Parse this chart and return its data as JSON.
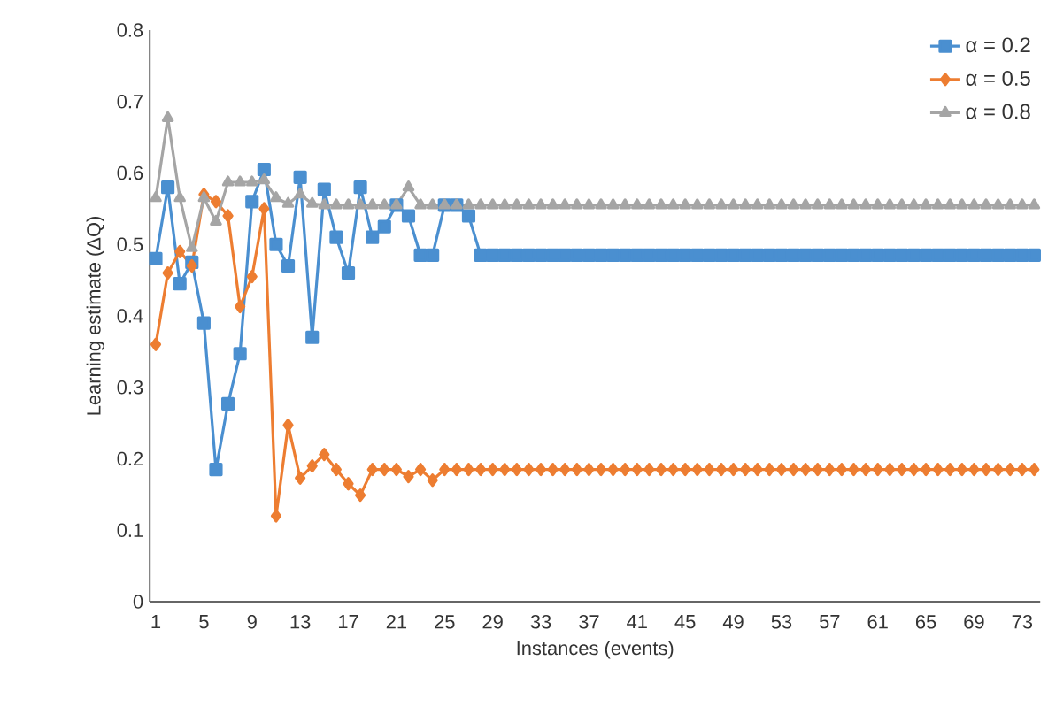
{
  "chart_data": {
    "type": "line",
    "xlabel": "Instances (events)",
    "ylabel": "Learning estimate (ΔQ)",
    "categories": [
      "1",
      null,
      null,
      null,
      "5",
      null,
      null,
      null,
      "9",
      null,
      null,
      null,
      "13",
      null,
      null,
      null,
      "17",
      null,
      null,
      null,
      "21",
      null,
      null,
      null,
      "25",
      null,
      null,
      null,
      "29",
      null,
      null,
      null,
      "33",
      null,
      null,
      null,
      "37",
      null,
      null,
      null,
      "41",
      null,
      null,
      null,
      "45",
      null,
      null,
      null,
      "49",
      null,
      null,
      null,
      "53",
      null,
      null,
      null,
      "57",
      null,
      null,
      null,
      "61",
      null,
      null,
      null,
      "65",
      null,
      null,
      null,
      "69",
      null,
      null,
      null,
      "73",
      null
    ],
    "ylim": [
      0,
      0.8
    ],
    "yticks": [
      0,
      0.1,
      0.2,
      0.3,
      0.4,
      0.5,
      0.6,
      0.7,
      0.8
    ],
    "grid": false,
    "legend": "top right",
    "series": [
      {
        "name": "α = 0.2",
        "color": "#4a8fd0",
        "marker": "square",
        "values": [
          0.48,
          0.58,
          0.445,
          0.475,
          0.39,
          0.185,
          0.277,
          0.347,
          0.56,
          0.605,
          0.5,
          0.47,
          0.594,
          0.37,
          0.577,
          0.51,
          0.46,
          0.58,
          0.51,
          0.525,
          0.555,
          0.54,
          0.485,
          0.485,
          0.555,
          0.555,
          0.54,
          0.485,
          0.485,
          0.485,
          0.485,
          0.485,
          0.485,
          0.485,
          0.485,
          0.485,
          0.485,
          0.485,
          0.485,
          0.485,
          0.485,
          0.485,
          0.485,
          0.485,
          0.485,
          0.485,
          0.485,
          0.485,
          0.485,
          0.485,
          0.485,
          0.485,
          0.485,
          0.485,
          0.485,
          0.485,
          0.485,
          0.485,
          0.485,
          0.485,
          0.485,
          0.485,
          0.485,
          0.485,
          0.485,
          0.485,
          0.485,
          0.485,
          0.485,
          0.485,
          0.485,
          0.485,
          0.485,
          0.485
        ]
      },
      {
        "name": "α = 0.5",
        "color": "#ed7d31",
        "marker": "diamond",
        "values": [
          0.36,
          0.46,
          0.49,
          0.47,
          0.57,
          0.56,
          0.54,
          0.413,
          0.455,
          0.55,
          0.12,
          0.247,
          0.173,
          0.19,
          0.206,
          0.185,
          0.165,
          0.149,
          0.185,
          0.185,
          0.185,
          0.175,
          0.185,
          0.17,
          0.185,
          0.185,
          0.185,
          0.185,
          0.185,
          0.185,
          0.185,
          0.185,
          0.185,
          0.185,
          0.185,
          0.185,
          0.185,
          0.185,
          0.185,
          0.185,
          0.185,
          0.185,
          0.185,
          0.185,
          0.185,
          0.185,
          0.185,
          0.185,
          0.185,
          0.185,
          0.185,
          0.185,
          0.185,
          0.185,
          0.185,
          0.185,
          0.185,
          0.185,
          0.185,
          0.185,
          0.185,
          0.185,
          0.185,
          0.185,
          0.185,
          0.185,
          0.185,
          0.185,
          0.185,
          0.185,
          0.185,
          0.185,
          0.185,
          0.185
        ]
      },
      {
        "name": "α = 0.8",
        "color": "#a5a5a5",
        "marker": "triangle",
        "values": [
          0.565,
          0.677,
          0.565,
          0.495,
          0.565,
          0.532,
          0.587,
          0.587,
          0.587,
          0.59,
          0.565,
          0.557,
          0.57,
          0.557,
          0.555,
          0.555,
          0.555,
          0.555,
          0.555,
          0.555,
          0.555,
          0.58,
          0.555,
          0.555,
          0.555,
          0.555,
          0.555,
          0.555,
          0.555,
          0.555,
          0.555,
          0.555,
          0.555,
          0.555,
          0.555,
          0.555,
          0.555,
          0.555,
          0.555,
          0.555,
          0.555,
          0.555,
          0.555,
          0.555,
          0.555,
          0.555,
          0.555,
          0.555,
          0.555,
          0.555,
          0.555,
          0.555,
          0.555,
          0.555,
          0.555,
          0.555,
          0.555,
          0.555,
          0.555,
          0.555,
          0.555,
          0.555,
          0.555,
          0.555,
          0.555,
          0.555,
          0.555,
          0.555,
          0.555,
          0.555,
          0.555,
          0.555,
          0.555,
          0.555
        ]
      }
    ]
  }
}
